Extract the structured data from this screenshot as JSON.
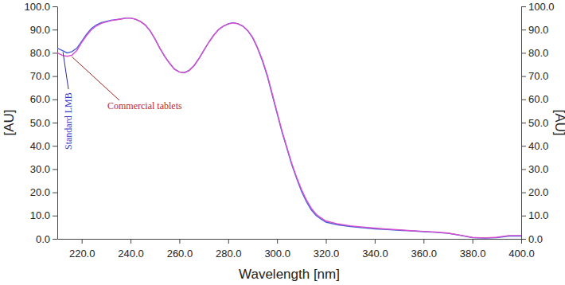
{
  "chart_data": {
    "type": "line",
    "x_label": "Wavelength [nm]",
    "y_label": "[AU]",
    "y2_label": "[AU]",
    "x": [
      210,
      212,
      214,
      216,
      218,
      220,
      222,
      224,
      226,
      228,
      230,
      232,
      234,
      236,
      238,
      240,
      242,
      244,
      246,
      248,
      250,
      252,
      254,
      256,
      258,
      260,
      262,
      264,
      266,
      268,
      270,
      272,
      274,
      276,
      278,
      280,
      282,
      284,
      286,
      288,
      290,
      292,
      294,
      296,
      298,
      300,
      302,
      304,
      306,
      308,
      310,
      312,
      314,
      316,
      318,
      320,
      325,
      330,
      335,
      340,
      345,
      350,
      355,
      360,
      365,
      370,
      375,
      380,
      385,
      390,
      395,
      400
    ],
    "series": [
      {
        "name": "Standard LMB",
        "color": "#4a5fd8",
        "values": [
          82,
          81,
          80,
          80.5,
          82,
          85,
          88,
          90.5,
          92,
          93,
          93.5,
          94,
          94.3,
          94.6,
          95,
          95,
          94.5,
          93.5,
          92,
          89.5,
          86,
          82,
          78.5,
          75.5,
          73,
          71.8,
          71.5,
          72.5,
          74.5,
          77.5,
          81,
          84.5,
          87.5,
          90,
          91.5,
          92.5,
          93,
          92.5,
          91.5,
          89.5,
          86.5,
          82,
          76.5,
          70,
          62,
          54,
          46,
          39,
          32,
          26,
          20.5,
          16,
          12.5,
          10,
          8.5,
          7.2,
          6,
          5.3,
          4.8,
          4.3,
          4,
          3.7,
          3.4,
          3.1,
          2.8,
          2.4,
          1.5,
          0.5,
          0.3,
          0.5,
          1.2,
          1.2
        ]
      },
      {
        "name": "Commercial tablets",
        "color": "#d84fd0",
        "values": [
          80,
          79,
          78.5,
          79,
          81,
          84.5,
          87.5,
          90,
          91.6,
          92.7,
          93.3,
          93.9,
          94.2,
          94.5,
          94.9,
          95,
          94.5,
          93.5,
          92,
          89.5,
          86,
          82,
          78.5,
          75.5,
          73,
          71.8,
          71.4,
          72.4,
          74.5,
          77.5,
          81,
          84.5,
          87.5,
          90,
          91.5,
          92.4,
          92.9,
          92.5,
          91.5,
          89.6,
          86.7,
          82.3,
          77,
          70.5,
          62.5,
          54.5,
          46.5,
          39.5,
          32.5,
          26.5,
          21.2,
          16.8,
          13.2,
          10.6,
          9,
          7.7,
          6.4,
          5.6,
          5.1,
          4.6,
          4.2,
          3.9,
          3.5,
          3.2,
          2.9,
          2.5,
          1.6,
          0.6,
          0.4,
          0.7,
          1.4,
          1.4
        ]
      }
    ],
    "xlim": [
      210,
      400
    ],
    "xticks": [
      {
        "value": 220,
        "label": "220.0"
      },
      {
        "value": 240,
        "label": "240.0"
      },
      {
        "value": 260,
        "label": "260.0"
      },
      {
        "value": 280,
        "label": "280.0"
      },
      {
        "value": 300,
        "label": "300.0"
      },
      {
        "value": 320,
        "label": "320.0"
      },
      {
        "value": 340,
        "label": "340.0"
      },
      {
        "value": 360,
        "label": "360.0"
      },
      {
        "value": 380,
        "label": "380.0"
      },
      {
        "value": 400,
        "label": "400.0"
      }
    ],
    "ylim": [
      0,
      100
    ],
    "yticks": [
      {
        "value": 0,
        "label": "0.0"
      },
      {
        "value": 10,
        "label": "10.0"
      },
      {
        "value": 20,
        "label": "20.0"
      },
      {
        "value": 30,
        "label": "30.0"
      },
      {
        "value": 40,
        "label": "40.0"
      },
      {
        "value": 50,
        "label": "50.0"
      },
      {
        "value": 60,
        "label": "60.0"
      },
      {
        "value": 70,
        "label": "70.0"
      },
      {
        "value": 80,
        "label": "80.0"
      },
      {
        "value": 90,
        "label": "90.0"
      },
      {
        "value": 100,
        "label": "100.0"
      }
    ],
    "y2lim": [
      0,
      100
    ],
    "y2ticks": [
      {
        "value": 0,
        "label": "0.0"
      },
      {
        "value": 10,
        "label": "10.0"
      },
      {
        "value": 20,
        "label": "20.0"
      },
      {
        "value": 30,
        "label": "30.0"
      },
      {
        "value": 40,
        "label": "40.0"
      },
      {
        "value": 50,
        "label": "50.0"
      },
      {
        "value": 60,
        "label": "60.0"
      },
      {
        "value": 70,
        "label": "70.0"
      },
      {
        "value": 80,
        "label": "80.0"
      },
      {
        "value": 90,
        "label": "90.0"
      },
      {
        "value": 100,
        "label": "100.0"
      }
    ],
    "grid": false
  }
}
